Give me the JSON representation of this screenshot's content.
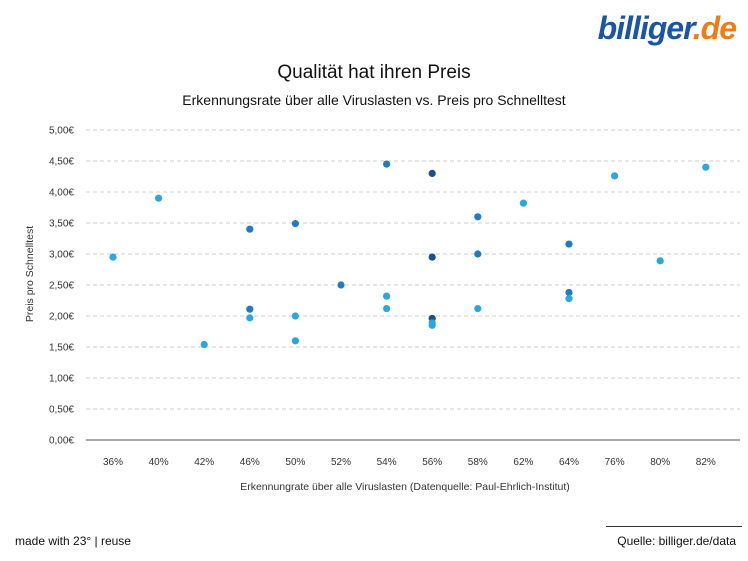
{
  "logo": {
    "part1": "billiger",
    "part2": ".de"
  },
  "footer": {
    "made_with": "made with 23° | reuse",
    "source": "Quelle: billiger.de/data"
  },
  "colors": {
    "light": "#29a8e0",
    "mid": "#1f7bc4",
    "dark": "#1b4f8a",
    "grid": "#cfcfcf"
  },
  "chart_data": {
    "type": "scatter",
    "title": "Qualität hat ihren Preis",
    "subtitle": "Erkennungsrate über alle Viruslasten vs. Preis pro Schnelltest",
    "xlabel": "Erkennungrate über alle Viruslasten (Datenquelle: Paul-Ehrlich-Institut)",
    "ylabel": "Preis pro Schnelltest",
    "categories": [
      "36%",
      "40%",
      "42%",
      "46%",
      "50%",
      "52%",
      "54%",
      "56%",
      "58%",
      "62%",
      "64%",
      "76%",
      "80%",
      "82%"
    ],
    "y_ticks": [
      "0,00€",
      "0,50€",
      "1,00€",
      "1,50€",
      "2,00€",
      "2,50€",
      "3,00€",
      "3,50€",
      "4,00€",
      "4,50€",
      "5,00€"
    ],
    "ylim": [
      0,
      5
    ],
    "grid": true,
    "points": [
      {
        "x": "36%",
        "y": 2.95,
        "c": "light"
      },
      {
        "x": "40%",
        "y": 3.9,
        "c": "light"
      },
      {
        "x": "42%",
        "y": 1.54,
        "c": "light"
      },
      {
        "x": "46%",
        "y": 3.4,
        "c": "mid"
      },
      {
        "x": "46%",
        "y": 2.11,
        "c": "mid"
      },
      {
        "x": "46%",
        "y": 1.97,
        "c": "light"
      },
      {
        "x": "50%",
        "y": 3.49,
        "c": "mid"
      },
      {
        "x": "50%",
        "y": 2.0,
        "c": "light"
      },
      {
        "x": "50%",
        "y": 1.6,
        "c": "light"
      },
      {
        "x": "52%",
        "y": 2.5,
        "c": "mid"
      },
      {
        "x": "54%",
        "y": 4.45,
        "c": "mid"
      },
      {
        "x": "54%",
        "y": 2.32,
        "c": "light"
      },
      {
        "x": "54%",
        "y": 2.12,
        "c": "light"
      },
      {
        "x": "56%",
        "y": 4.3,
        "c": "dark"
      },
      {
        "x": "56%",
        "y": 2.95,
        "c": "dark"
      },
      {
        "x": "56%",
        "y": 1.96,
        "c": "dark"
      },
      {
        "x": "56%",
        "y": 1.89,
        "c": "light"
      },
      {
        "x": "56%",
        "y": 1.85,
        "c": "light"
      },
      {
        "x": "58%",
        "y": 3.6,
        "c": "mid"
      },
      {
        "x": "58%",
        "y": 3.0,
        "c": "mid"
      },
      {
        "x": "58%",
        "y": 2.12,
        "c": "light"
      },
      {
        "x": "62%",
        "y": 3.82,
        "c": "light"
      },
      {
        "x": "64%",
        "y": 3.16,
        "c": "mid"
      },
      {
        "x": "64%",
        "y": 2.38,
        "c": "mid"
      },
      {
        "x": "64%",
        "y": 2.28,
        "c": "light"
      },
      {
        "x": "76%",
        "y": 4.26,
        "c": "light"
      },
      {
        "x": "80%",
        "y": 2.89,
        "c": "light"
      },
      {
        "x": "82%",
        "y": 4.4,
        "c": "light"
      }
    ]
  }
}
